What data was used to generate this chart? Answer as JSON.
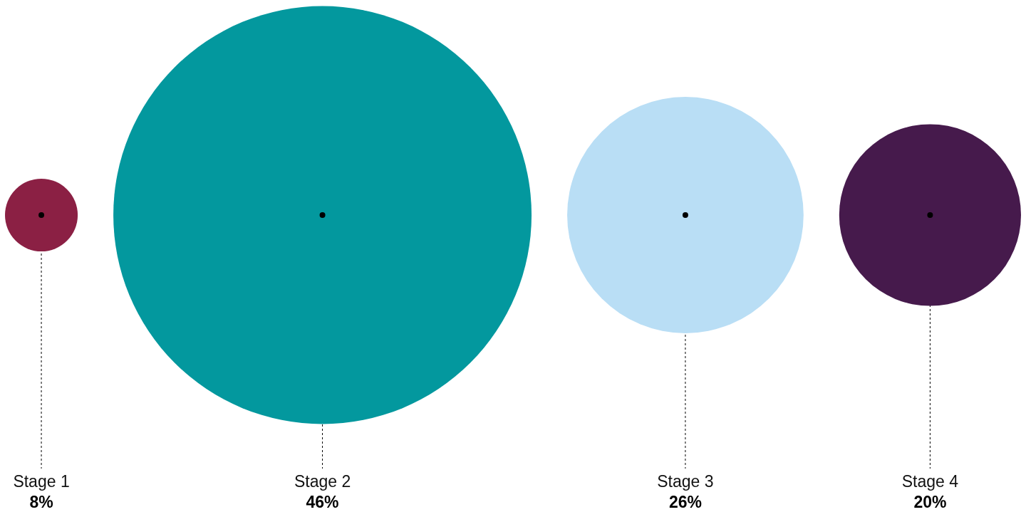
{
  "chart_data": {
    "type": "other",
    "categories": [
      "Stage 1",
      "Stage 2",
      "Stage 3",
      "Stage 4"
    ],
    "values": [
      8,
      46,
      26,
      20
    ],
    "value_labels": [
      "8%",
      "46%",
      "26%",
      "20%"
    ],
    "colors": [
      "#8b2044",
      "#03989e",
      "#b9def5",
      "#461a4c"
    ]
  }
}
